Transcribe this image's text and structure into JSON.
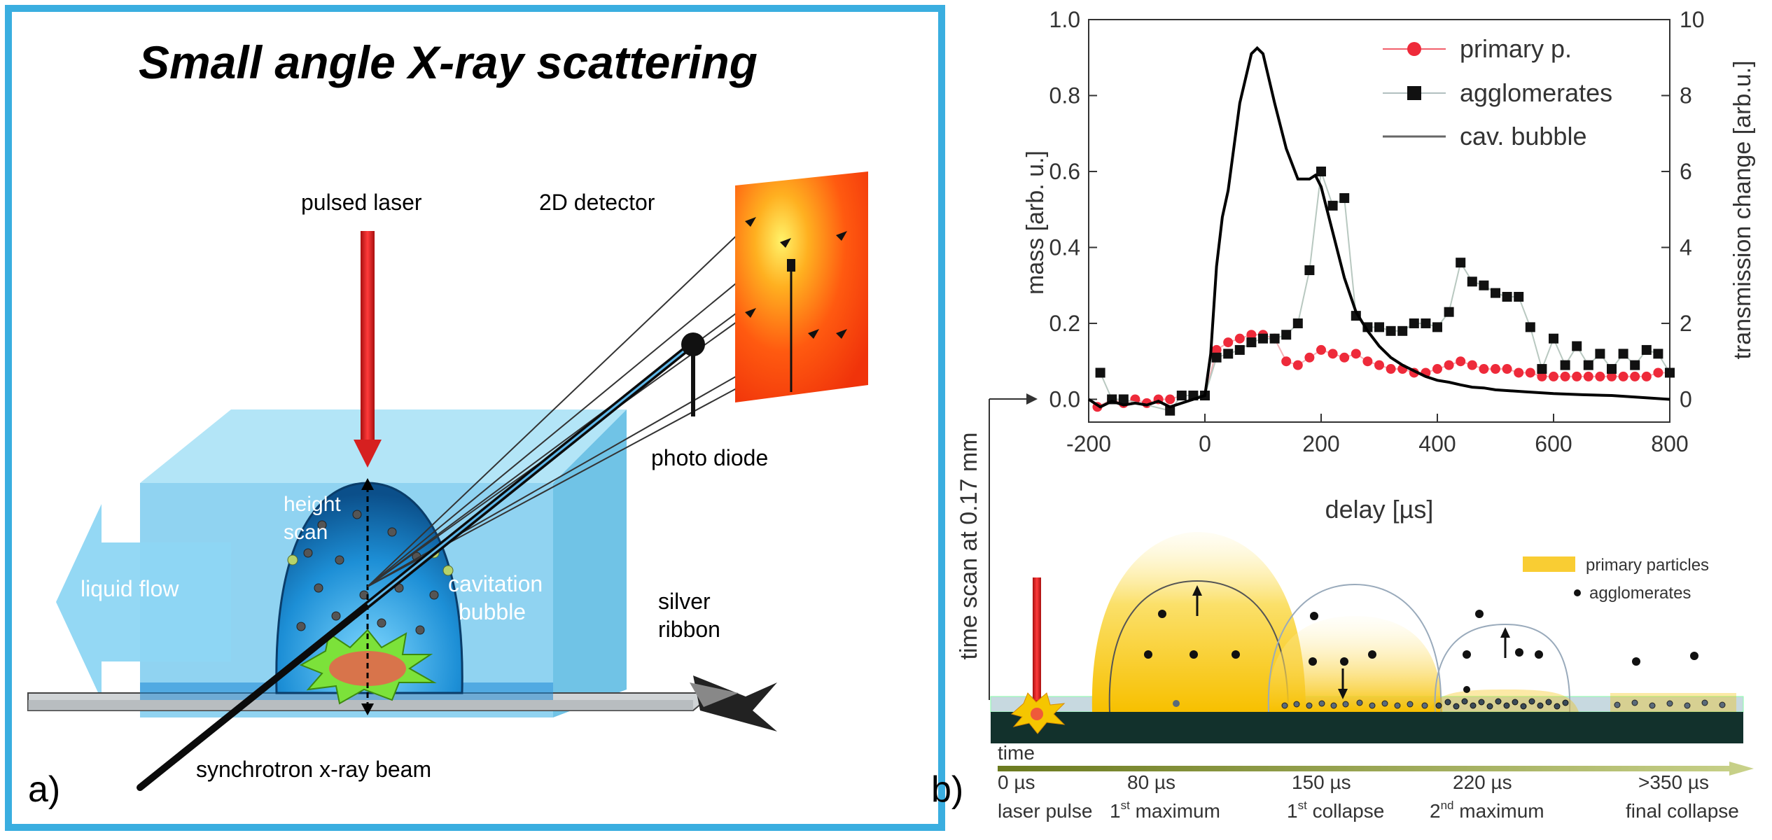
{
  "panel_a": {
    "title": "Small angle X-ray scattering",
    "labels": {
      "pulsed_laser": "pulsed laser",
      "detector": "2D detector",
      "photo_diode": "photo diode",
      "height_scan_1": "height",
      "height_scan_2": "scan",
      "cavitation_1": "cavitation",
      "cavitation_2": "bubble",
      "liquid_flow": "liquid flow",
      "silver_1": "silver",
      "silver_2": "ribbon",
      "xray_beam": "synchrotron x-ray beam",
      "panel_letter": "a)"
    },
    "colors": {
      "frame": "#3aaee0",
      "liquid": "#6cc9ee",
      "laser": "#d62020",
      "detector": "#ff5a10"
    }
  },
  "chart_data": {
    "type": "scatter",
    "xlabel": "delay [µs]",
    "ylabel": "mass [arb. u.]",
    "y2label": "transmission change [arb.u.]",
    "xlim": [
      -200,
      800
    ],
    "ylim": [
      -0.06,
      1.0
    ],
    "y2lim": [
      -0.6,
      10
    ],
    "xticks": [
      -200,
      0,
      200,
      400,
      600,
      800
    ],
    "yticks": [
      0.0,
      0.2,
      0.4,
      0.6,
      0.8,
      1.0
    ],
    "y2ticks": [
      0,
      2,
      4,
      6,
      8,
      10
    ],
    "legend_position": "top-right",
    "series": [
      {
        "name": "primary p.",
        "color": "#ee2a3a",
        "marker": "circle",
        "x": [
          -185,
          -160,
          -140,
          -120,
          -100,
          -80,
          -60,
          -40,
          -20,
          0,
          20,
          40,
          60,
          80,
          100,
          120,
          140,
          160,
          180,
          200,
          220,
          240,
          260,
          280,
          300,
          320,
          340,
          360,
          380,
          400,
          420,
          440,
          460,
          480,
          500,
          520,
          540,
          560,
          580,
          600,
          620,
          640,
          660,
          680,
          700,
          720,
          740,
          760,
          780,
          800
        ],
        "y": [
          -0.02,
          0.0,
          -0.01,
          0.0,
          -0.01,
          0.0,
          0.0,
          0.01,
          0.01,
          0.01,
          0.13,
          0.15,
          0.16,
          0.17,
          0.17,
          0.16,
          0.1,
          0.09,
          0.11,
          0.13,
          0.12,
          0.11,
          0.12,
          0.1,
          0.09,
          0.08,
          0.08,
          0.07,
          0.07,
          0.08,
          0.09,
          0.1,
          0.09,
          0.08,
          0.08,
          0.08,
          0.07,
          0.07,
          0.06,
          0.06,
          0.06,
          0.06,
          0.06,
          0.06,
          0.06,
          0.06,
          0.06,
          0.06,
          0.07,
          0.07
        ]
      },
      {
        "name": "agglomerates",
        "color": "#111111",
        "marker": "square",
        "x": [
          -180,
          -160,
          -140,
          -60,
          -40,
          -20,
          0,
          20,
          40,
          60,
          80,
          100,
          120,
          140,
          160,
          180,
          200,
          220,
          240,
          260,
          280,
          300,
          320,
          340,
          360,
          380,
          400,
          420,
          440,
          460,
          480,
          500,
          520,
          540,
          560,
          580,
          600,
          620,
          640,
          660,
          680,
          700,
          720,
          740,
          760,
          780,
          800
        ],
        "y": [
          0.07,
          0.0,
          0.0,
          -0.03,
          0.01,
          0.01,
          0.01,
          0.11,
          0.12,
          0.13,
          0.15,
          0.16,
          0.16,
          0.17,
          0.2,
          0.34,
          0.6,
          0.51,
          0.53,
          0.22,
          0.19,
          0.19,
          0.18,
          0.18,
          0.2,
          0.2,
          0.19,
          0.23,
          0.36,
          0.31,
          0.3,
          0.28,
          0.27,
          0.27,
          0.19,
          0.08,
          0.16,
          0.09,
          0.14,
          0.09,
          0.12,
          0.08,
          0.12,
          0.09,
          0.13,
          0.12,
          0.07
        ]
      },
      {
        "name": "cav. bubble",
        "color": "#000000",
        "marker": "line",
        "axis": "right",
        "x": [
          -200,
          -180,
          -160,
          -140,
          -120,
          -100,
          -80,
          -60,
          -40,
          -20,
          0,
          10,
          20,
          30,
          40,
          60,
          80,
          90,
          100,
          120,
          140,
          160,
          180,
          190,
          200,
          220,
          240,
          260,
          280,
          300,
          320,
          340,
          360,
          380,
          400,
          420,
          440,
          460,
          480,
          500,
          550,
          600,
          650,
          700,
          750,
          800
        ],
        "y": [
          0.0,
          -0.2,
          -0.05,
          -0.15,
          -0.1,
          -0.15,
          -0.05,
          -0.2,
          -0.1,
          0.0,
          0.1,
          1.2,
          3.5,
          4.8,
          5.5,
          7.8,
          9.1,
          9.25,
          9.1,
          7.8,
          6.6,
          5.8,
          5.8,
          5.9,
          5.6,
          4.4,
          3.2,
          2.3,
          1.8,
          1.4,
          1.1,
          0.9,
          0.75,
          0.6,
          0.5,
          0.45,
          0.38,
          0.32,
          0.3,
          0.25,
          0.2,
          0.15,
          0.12,
          0.1,
          0.05,
          0.0
        ]
      }
    ]
  },
  "panel_b_schematic": {
    "y_label": "time scan at 0.17 mm",
    "legend": {
      "primary": "primary particles",
      "agglomerates": "agglomerates"
    },
    "time_label": "time",
    "panel_letter": "b)",
    "stages": [
      {
        "time": "0 µs",
        "desc": "laser pulse"
      },
      {
        "time": "80 µs",
        "desc": "1",
        "sup": "st",
        "desc2": " maximum"
      },
      {
        "time": "150 µs",
        "desc": "1",
        "sup": "st",
        "desc2": " collapse"
      },
      {
        "time": "220 µs",
        "desc": "2",
        "sup": "nd",
        "desc2": " maximum"
      },
      {
        "time": ">350 µs",
        "desc": "final collapse"
      }
    ]
  }
}
